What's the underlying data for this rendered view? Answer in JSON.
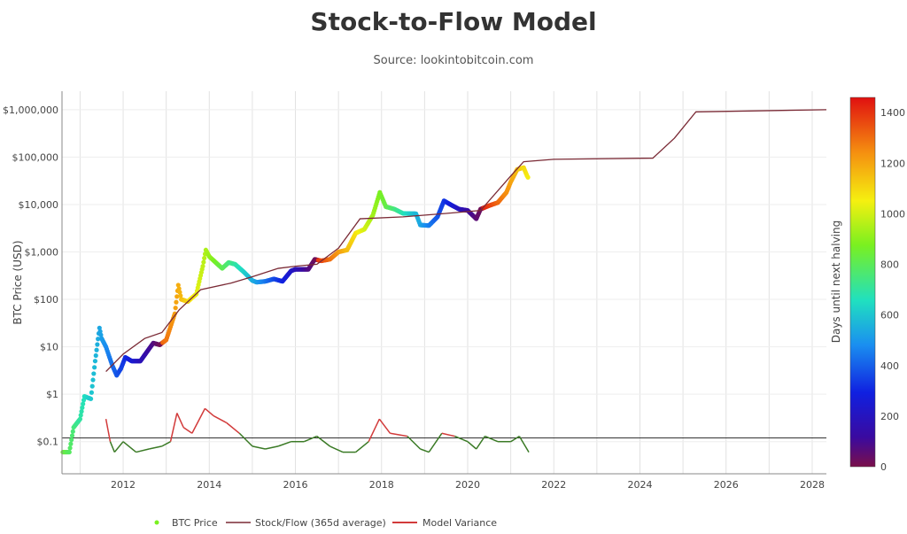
{
  "chart_data": {
    "type": "scatter",
    "title": "Stock-to-Flow Model",
    "subtitle": "Source: lookintobitcoin.com",
    "ylabel": "BTC Price (USD)",
    "y_scale": "log",
    "ylim": [
      0.021,
      2450000
    ],
    "xlim": [
      2010.58,
      2028.33
    ],
    "x_ticks": [
      "2012",
      "2014",
      "2016",
      "2018",
      "2020",
      "2022",
      "2024",
      "2026",
      "2028"
    ],
    "y_ticks": [
      "$0.1",
      "$1",
      "$10",
      "$100",
      "$1,000",
      "$10,000",
      "$100,000",
      "$1,000,000"
    ],
    "y_tick_values": [
      0.1,
      1,
      10,
      100,
      1000,
      10000,
      100000,
      1000000
    ],
    "grid": true,
    "legend_position": "bottom",
    "colorbar": {
      "title": "Days until next halving",
      "range": [
        0,
        1460
      ],
      "ticks": [
        "0",
        "200",
        "400",
        "600",
        "800",
        "1000",
        "1200",
        "1400"
      ],
      "tick_values": [
        0,
        200,
        400,
        600,
        800,
        1000,
        1200,
        1400
      ]
    },
    "series": [
      {
        "name": "BTC Price",
        "kind": "markers",
        "color_by": "days until next halving",
        "points": [
          [
            2010.6,
            0.06
          ],
          [
            2010.75,
            0.06
          ],
          [
            2010.85,
            0.2
          ],
          [
            2011.0,
            0.3
          ],
          [
            2011.1,
            0.9
          ],
          [
            2011.25,
            0.8
          ],
          [
            2011.35,
            5
          ],
          [
            2011.45,
            25
          ],
          [
            2011.5,
            15
          ],
          [
            2011.6,
            10
          ],
          [
            2011.75,
            4
          ],
          [
            2011.85,
            2.5
          ],
          [
            2011.95,
            3.5
          ],
          [
            2012.05,
            6
          ],
          [
            2012.2,
            5
          ],
          [
            2012.4,
            5
          ],
          [
            2012.6,
            9
          ],
          [
            2012.7,
            12
          ],
          [
            2012.85,
            11
          ],
          [
            2013.0,
            14
          ],
          [
            2013.2,
            50
          ],
          [
            2013.28,
            200
          ],
          [
            2013.35,
            100
          ],
          [
            2013.5,
            90
          ],
          [
            2013.7,
            130
          ],
          [
            2013.85,
            500
          ],
          [
            2013.92,
            1100
          ],
          [
            2014.0,
            800
          ],
          [
            2014.15,
            600
          ],
          [
            2014.3,
            450
          ],
          [
            2014.45,
            600
          ],
          [
            2014.6,
            550
          ],
          [
            2014.8,
            380
          ],
          [
            2015.0,
            250
          ],
          [
            2015.1,
            230
          ],
          [
            2015.3,
            240
          ],
          [
            2015.5,
            270
          ],
          [
            2015.7,
            240
          ],
          [
            2015.9,
            400
          ],
          [
            2016.0,
            430
          ],
          [
            2016.3,
            430
          ],
          [
            2016.45,
            700
          ],
          [
            2016.6,
            650
          ],
          [
            2016.8,
            700
          ],
          [
            2017.0,
            1000
          ],
          [
            2017.2,
            1100
          ],
          [
            2017.4,
            2500
          ],
          [
            2017.6,
            3000
          ],
          [
            2017.8,
            6000
          ],
          [
            2017.96,
            18000
          ],
          [
            2018.1,
            9000
          ],
          [
            2018.3,
            8000
          ],
          [
            2018.5,
            6500
          ],
          [
            2018.8,
            6400
          ],
          [
            2018.9,
            3700
          ],
          [
            2019.1,
            3600
          ],
          [
            2019.3,
            5500
          ],
          [
            2019.45,
            12000
          ],
          [
            2019.6,
            10000
          ],
          [
            2019.8,
            8000
          ],
          [
            2020.0,
            7500
          ],
          [
            2020.2,
            5000
          ],
          [
            2020.3,
            8000
          ],
          [
            2020.5,
            9500
          ],
          [
            2020.7,
            11000
          ],
          [
            2020.9,
            18000
          ],
          [
            2021.0,
            30000
          ],
          [
            2021.15,
            55000
          ],
          [
            2021.3,
            60000
          ],
          [
            2021.38,
            40000
          ],
          [
            2021.42,
            35000
          ]
        ]
      },
      {
        "name": "Stock/Flow (365d average)",
        "kind": "line",
        "color": "#7a2a35",
        "points": [
          [
            2011.6,
            3
          ],
          [
            2012.0,
            7
          ],
          [
            2012.5,
            15
          ],
          [
            2012.9,
            20
          ],
          [
            2013.3,
            60
          ],
          [
            2013.8,
            160
          ],
          [
            2014.5,
            220
          ],
          [
            2015.0,
            300
          ],
          [
            2015.6,
            450
          ],
          [
            2016.0,
            500
          ],
          [
            2016.5,
            550
          ],
          [
            2017.0,
            1200
          ],
          [
            2017.5,
            5000
          ],
          [
            2018.5,
            5500
          ],
          [
            2019.5,
            6500
          ],
          [
            2020.3,
            7500
          ],
          [
            2021.0,
            40000
          ],
          [
            2021.3,
            80000
          ],
          [
            2022.0,
            90000
          ],
          [
            2024.3,
            95000
          ],
          [
            2024.8,
            250000
          ],
          [
            2025.3,
            900000
          ],
          [
            2028.33,
            1000000
          ]
        ]
      },
      {
        "name": "Model Variance",
        "kind": "line",
        "color_above": "#d23b3b",
        "color_below": "#3a7a25",
        "baseline": 0.12,
        "points": [
          [
            2011.6,
            0.3
          ],
          [
            2011.7,
            0.1
          ],
          [
            2011.8,
            0.06
          ],
          [
            2012.0,
            0.1
          ],
          [
            2012.3,
            0.06
          ],
          [
            2012.6,
            0.07
          ],
          [
            2012.9,
            0.08
          ],
          [
            2013.1,
            0.1
          ],
          [
            2013.25,
            0.4
          ],
          [
            2013.4,
            0.2
          ],
          [
            2013.6,
            0.15
          ],
          [
            2013.9,
            0.5
          ],
          [
            2014.1,
            0.35
          ],
          [
            2014.4,
            0.25
          ],
          [
            2014.7,
            0.15
          ],
          [
            2015.0,
            0.08
          ],
          [
            2015.3,
            0.07
          ],
          [
            2015.6,
            0.08
          ],
          [
            2015.9,
            0.1
          ],
          [
            2016.2,
            0.1
          ],
          [
            2016.5,
            0.13
          ],
          [
            2016.8,
            0.08
          ],
          [
            2017.1,
            0.06
          ],
          [
            2017.4,
            0.06
          ],
          [
            2017.7,
            0.1
          ],
          [
            2017.95,
            0.3
          ],
          [
            2018.2,
            0.15
          ],
          [
            2018.6,
            0.13
          ],
          [
            2018.9,
            0.07
          ],
          [
            2019.1,
            0.06
          ],
          [
            2019.4,
            0.15
          ],
          [
            2019.7,
            0.13
          ],
          [
            2020.0,
            0.1
          ],
          [
            2020.2,
            0.07
          ],
          [
            2020.4,
            0.13
          ],
          [
            2020.7,
            0.1
          ],
          [
            2021.0,
            0.1
          ],
          [
            2021.2,
            0.13
          ],
          [
            2021.42,
            0.06
          ]
        ]
      }
    ]
  }
}
